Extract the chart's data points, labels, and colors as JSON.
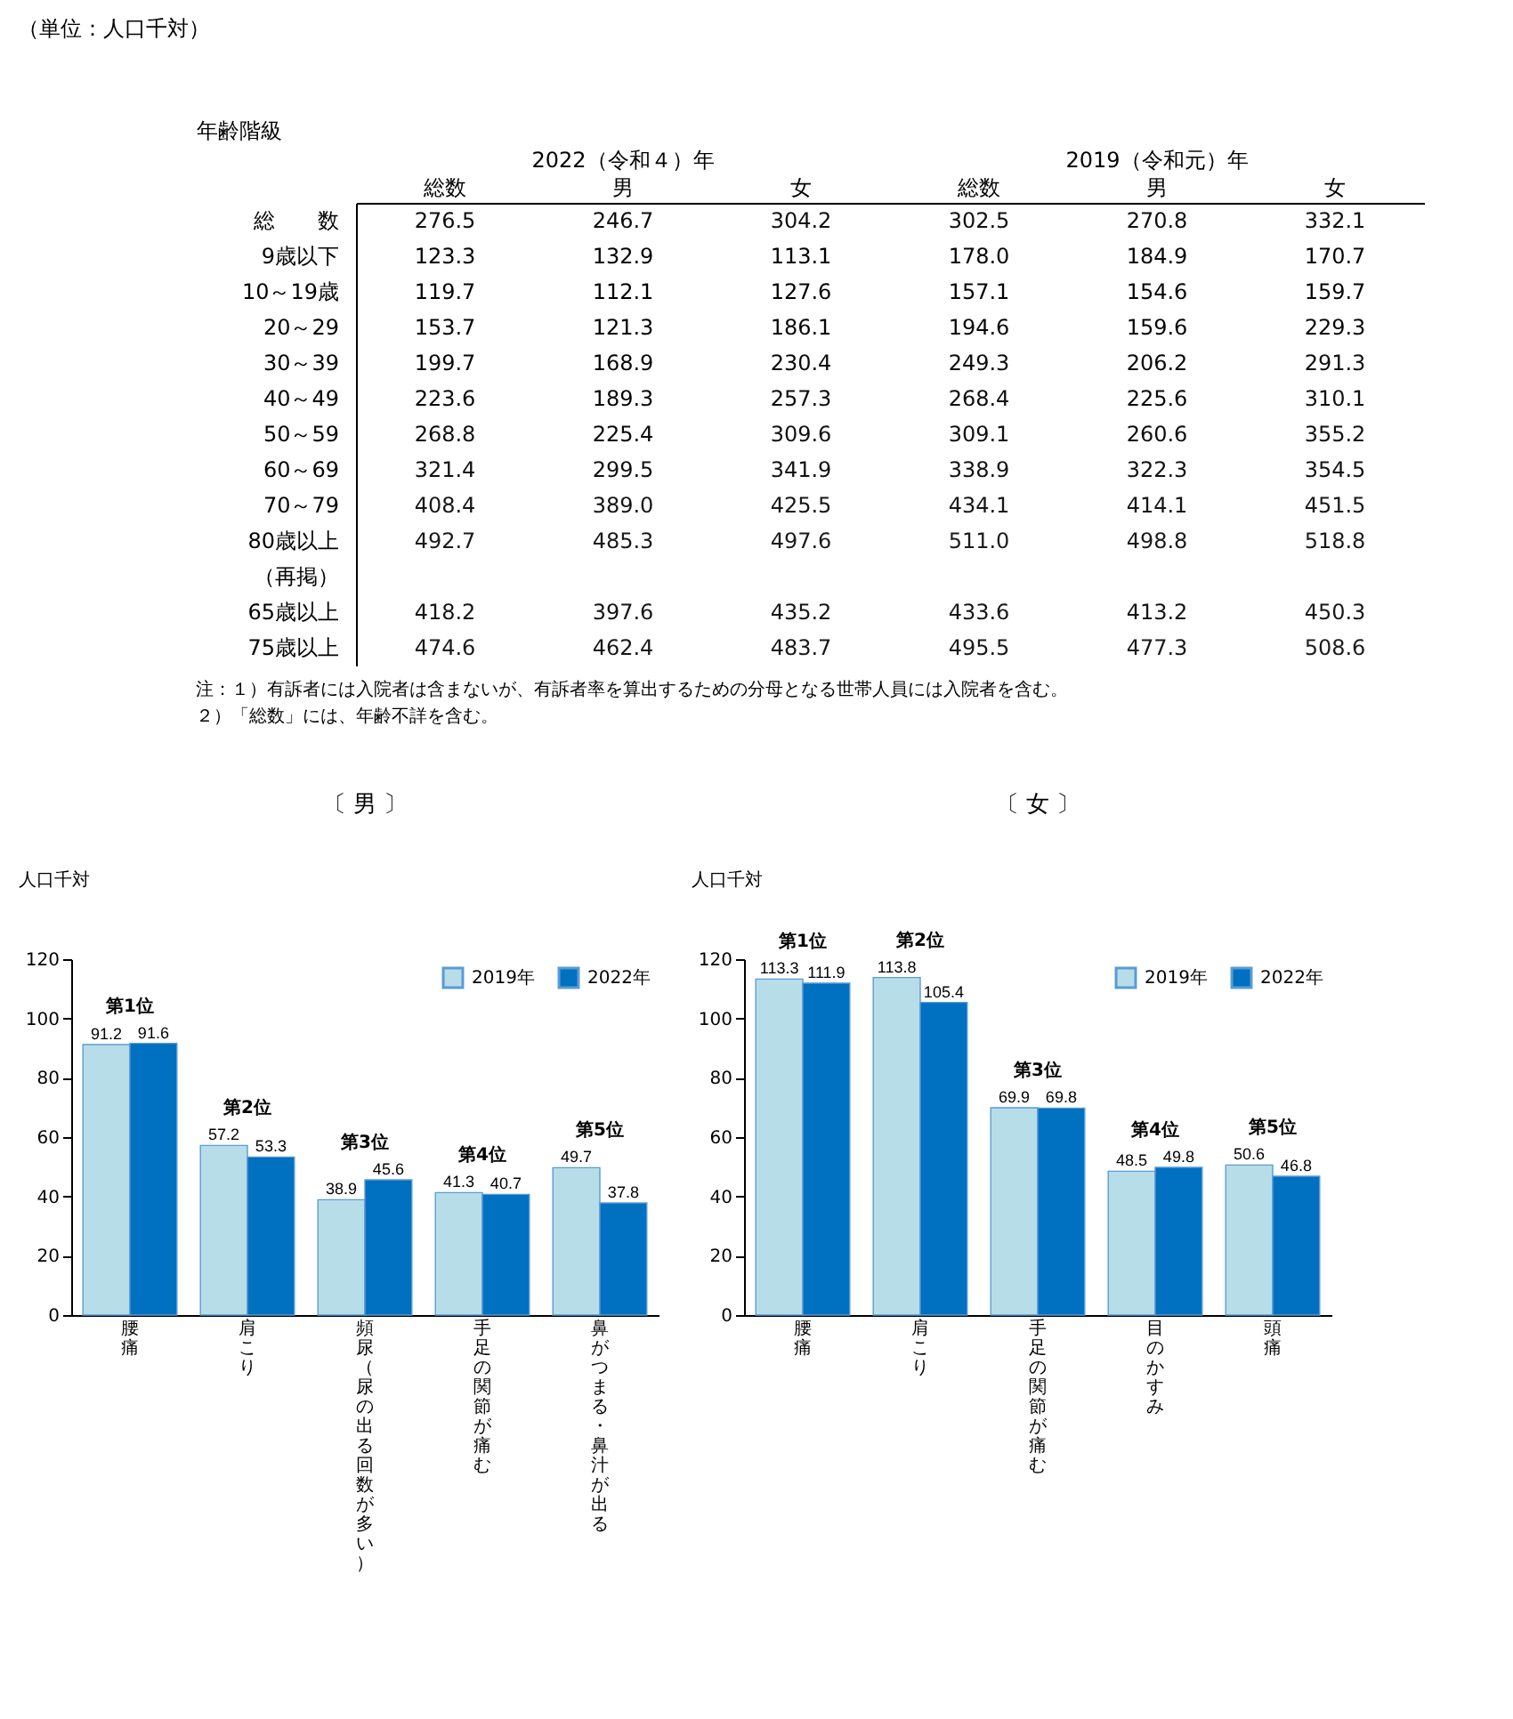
{
  "chart_data": [
    {
      "type": "heatmap",
      "title": "（単位：人口千対）",
      "ylabel": "年齢階級",
      "data_labels": true,
      "categories": [
        "総数",
        "男",
        "女",
        "総数",
        "男",
        "女"
      ],
      "y_categories": [
        "総　　数",
        "9歳以下",
        "10～19歳",
        "20～29",
        "30～39",
        "40～49",
        "50～59",
        "60～69",
        "70～79",
        "80歳以上",
        "（再掲）",
        "65歳以上",
        "75歳以上"
      ],
      "cells": [
        [
          276.5,
          246.7,
          304.2,
          302.5,
          270.8,
          332.1
        ],
        [
          123.3,
          132.9,
          113.1,
          178.0,
          184.9,
          170.7
        ],
        [
          119.7,
          112.1,
          127.6,
          157.1,
          154.6,
          159.7
        ],
        [
          153.7,
          121.3,
          186.1,
          194.6,
          159.6,
          229.3
        ],
        [
          199.7,
          168.9,
          230.4,
          249.3,
          206.2,
          291.3
        ],
        [
          223.6,
          189.3,
          257.3,
          268.4,
          225.6,
          310.1
        ],
        [
          268.8,
          225.4,
          309.6,
          309.1,
          260.6,
          355.2
        ],
        [
          321.4,
          299.5,
          341.9,
          338.9,
          322.3,
          354.5
        ],
        [
          408.4,
          389.0,
          425.5,
          434.1,
          414.1,
          451.5
        ],
        [
          492.7,
          485.3,
          497.6,
          511.0,
          498.8,
          518.8
        ],
        [
          null,
          null,
          null,
          null,
          null,
          null
        ],
        [
          418.2,
          397.6,
          435.2,
          433.6,
          413.2,
          450.3
        ],
        [
          474.6,
          462.4,
          483.7,
          495.5,
          477.3,
          508.6
        ]
      ],
      "cell_labels": [
        [
          "276.5",
          "246.7",
          "304.2",
          "302.5",
          "270.8",
          "332.1"
        ],
        [
          "123.3",
          "132.9",
          "113.1",
          "178.0",
          "184.9",
          "170.7"
        ],
        [
          "119.7",
          "112.1",
          "127.6",
          "157.1",
          "154.6",
          "159.7"
        ],
        [
          "153.7",
          "121.3",
          "186.1",
          "194.6",
          "159.6",
          "229.3"
        ],
        [
          "199.7",
          "168.9",
          "230.4",
          "249.3",
          "206.2",
          "291.3"
        ],
        [
          "223.6",
          "189.3",
          "257.3",
          "268.4",
          "225.6",
          "310.1"
        ],
        [
          "268.8",
          "225.4",
          "309.6",
          "309.1",
          "260.6",
          "355.2"
        ],
        [
          "321.4",
          "299.5",
          "341.9",
          "338.9",
          "322.3",
          "354.5"
        ],
        [
          "408.4",
          "389.0",
          "425.5",
          "434.1",
          "414.1",
          "451.5"
        ],
        [
          "492.7",
          "485.3",
          "497.6",
          "511.0",
          "498.8",
          "518.8"
        ],
        [
          null,
          null,
          null,
          null,
          null,
          null
        ],
        [
          "418.2",
          "397.6",
          "435.2",
          "433.6",
          "413.2",
          "450.3"
        ],
        [
          "474.6",
          "462.4",
          "483.7",
          "495.5",
          "477.3",
          "508.6"
        ]
      ],
      "annotations": [
        "2022（令和４）年",
        "2019（令和元）年",
        "注：１）有訴者には入院者は含まないが、有訴者率を算出するための分母となる世帯人員には入院者を含む。",
        "　　２）「総数」には、年齢不詳を含む。"
      ]
    },
    {
      "type": "bar",
      "title": "〔 男 〕",
      "ylabel": "人口千対",
      "categories": [
        "腰痛",
        "肩こり",
        "頻尿（尿の出る回数が多い）",
        "手足の関節が痛む",
        "鼻がつまる・鼻汁が出る"
      ],
      "series": [
        {
          "name": "2019年",
          "color": "#b7dde8",
          "values": [
            91.2,
            57.2,
            38.9,
            41.3,
            49.7
          ]
        },
        {
          "name": "2022年",
          "color": "#0070c0",
          "values": [
            91.6,
            53.3,
            45.6,
            40.7,
            37.8
          ]
        }
      ],
      "ylim": [
        0,
        120
      ],
      "yticks": [
        0,
        20,
        40,
        60,
        80,
        100,
        120
      ],
      "data_labels": true,
      "legend": "top right",
      "annotations": [
        "第1位",
        "第2位",
        "第3位",
        "第4位",
        "第5位"
      ]
    },
    {
      "type": "bar",
      "title": "〔 女 〕",
      "ylabel": "人口千対",
      "categories": [
        "腰痛",
        "肩こり",
        "手足の関節が痛む",
        "目のかすみ",
        "頭痛"
      ],
      "series": [
        {
          "name": "2019年",
          "color": "#b7dde8",
          "values": [
            113.3,
            113.8,
            69.9,
            48.5,
            50.6
          ]
        },
        {
          "name": "2022年",
          "color": "#0070c0",
          "values": [
            111.9,
            105.4,
            69.8,
            49.8,
            46.8
          ]
        }
      ],
      "ylim": [
        0,
        120
      ],
      "yticks": [
        0,
        20,
        40,
        60,
        80,
        100,
        120
      ],
      "data_labels": true,
      "legend": "top right",
      "annotations": [
        "第1位",
        "第2位",
        "第3位",
        "第4位",
        "第5位"
      ]
    }
  ]
}
